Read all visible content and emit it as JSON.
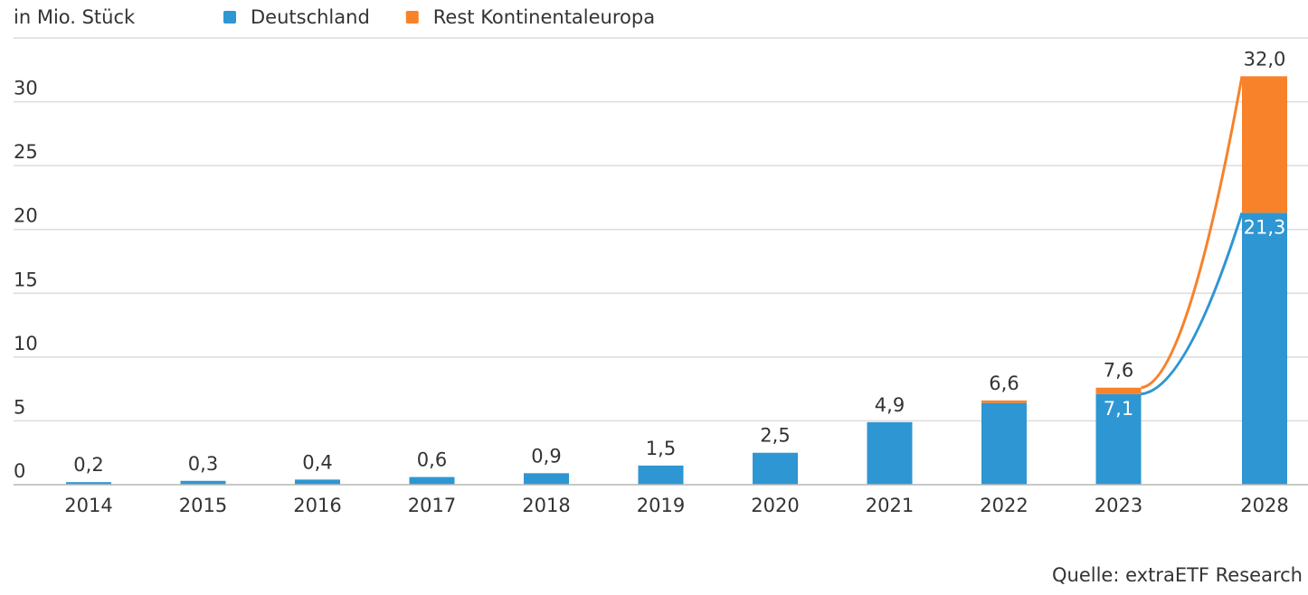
{
  "chart_data": {
    "type": "stacked_bar",
    "y_axis_label": "in Mio. Stück",
    "source": "Quelle: extraETF Research",
    "categories": [
      "2014",
      "2015",
      "2016",
      "2017",
      "2018",
      "2019",
      "2020",
      "2021",
      "2022",
      "2023",
      "2028"
    ],
    "series": [
      {
        "name": "Deutschland",
        "color": "#2e96d2",
        "values": [
          0.2,
          0.3,
          0.4,
          0.6,
          0.9,
          1.5,
          2.5,
          4.9,
          6.4,
          7.1,
          21.3
        ],
        "value_labels": [
          null,
          null,
          null,
          null,
          null,
          null,
          null,
          null,
          null,
          "7,1",
          "21,3"
        ]
      },
      {
        "name": "Rest Kontinentaleuropa",
        "color": "#f7822a",
        "values": [
          0,
          0,
          0,
          0,
          0,
          0,
          0,
          0,
          0.2,
          0.5,
          10.7
        ]
      }
    ],
    "totals": [
      0.2,
      0.3,
      0.4,
      0.6,
      0.9,
      1.5,
      2.5,
      4.9,
      6.6,
      7.6,
      32.0
    ],
    "total_labels": [
      "0,2",
      "0,3",
      "0,4",
      "0,6",
      "0,9",
      "1,5",
      "2,5",
      "4,9",
      "6,6",
      "7,6",
      "32,0"
    ],
    "ylim": [
      0,
      35
    ],
    "yticks": [
      0,
      5,
      10,
      15,
      20,
      25,
      30
    ],
    "grid": true
  }
}
